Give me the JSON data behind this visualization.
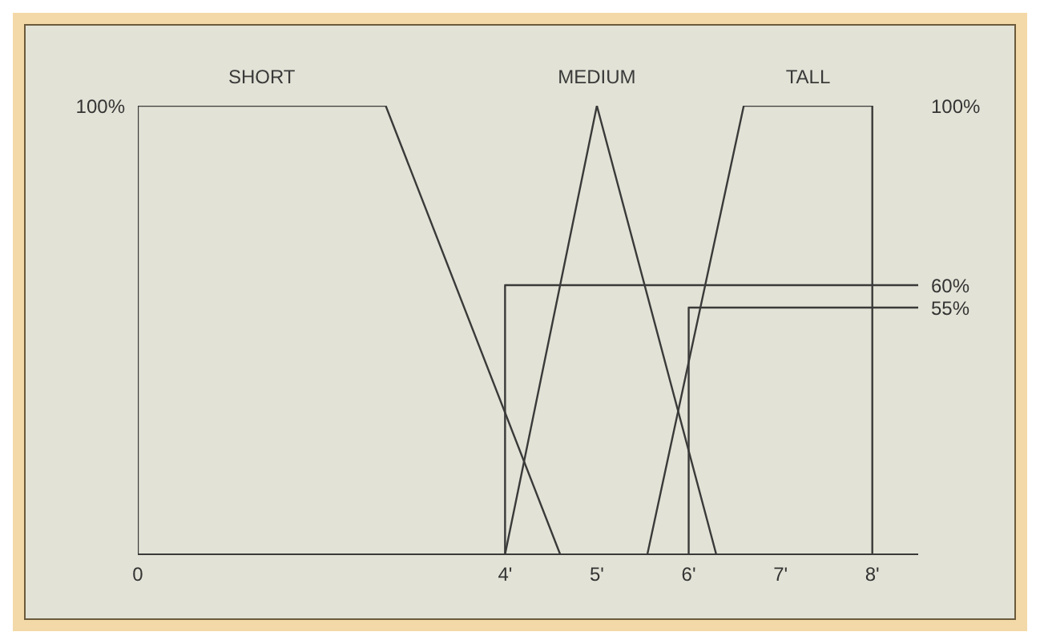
{
  "chart_data": {
    "type": "line",
    "xlim": [
      0,
      8.5
    ],
    "xticks": [
      0,
      {
        "value": 4,
        "label": "4'"
      },
      {
        "value": 5,
        "label": "5'"
      },
      {
        "value": 6,
        "label": "6'"
      },
      {
        "value": 7,
        "label": "7'"
      },
      {
        "value": 8,
        "label": "8'"
      }
    ],
    "ylim": [
      0,
      100
    ],
    "yticks": [
      {
        "value": 55,
        "label": "55%"
      },
      {
        "value": 60,
        "label": "60%"
      },
      {
        "value": 100,
        "label": "100%"
      }
    ],
    "annotations": [
      {
        "text": "100%",
        "x": 0,
        "y": 100
      }
    ],
    "grid": false,
    "legend": false,
    "marker": "none",
    "line_style": "solid",
    "series": [
      {
        "name": "SHORT",
        "color": "#3a3a3a",
        "x": [
          0,
          0,
          2.7,
          4.6
        ],
        "values": [
          0,
          100,
          100,
          0
        ]
      },
      {
        "name": "MEDIUM",
        "color": "#3a3a3a",
        "x": [
          4,
          5,
          6.3
        ],
        "values": [
          0,
          100,
          0
        ]
      },
      {
        "name": "TALL",
        "color": "#3a3a3a",
        "x": [
          5.55,
          6.6,
          8,
          8
        ],
        "values": [
          0,
          100,
          100,
          0
        ]
      },
      {
        "color": "#3a3a3a",
        "x": [
          4,
          4,
          8.5
        ],
        "values": [
          0,
          60,
          60
        ]
      },
      {
        "color": "#3a3a3a",
        "x": [
          6,
          6,
          8.5
        ],
        "values": [
          0,
          55,
          55
        ]
      }
    ]
  }
}
